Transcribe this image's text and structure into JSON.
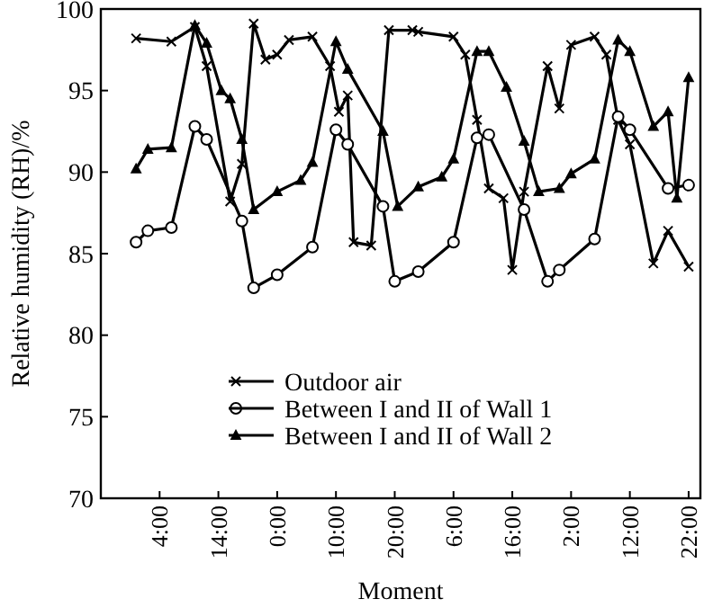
{
  "chart_data": {
    "type": "line",
    "xlabel": "Moment",
    "ylabel": "Relative humidity (RH)/%",
    "xlim": [
      "1999-12-31T18:00",
      "2000-01-05T00:00"
    ],
    "ylim": [
      70,
      100
    ],
    "xticks": [
      {
        "value": "2000-01-01T04:00",
        "label": "4:00"
      },
      {
        "value": "2000-01-01T14:00",
        "label": "14:00"
      },
      {
        "value": "2000-01-02T00:00",
        "label": "0:00"
      },
      {
        "value": "2000-01-02T10:00",
        "label": "10:00"
      },
      {
        "value": "2000-01-02T20:00",
        "label": "20:00"
      },
      {
        "value": "2000-01-03T06:00",
        "label": "6:00"
      },
      {
        "value": "2000-01-03T16:00",
        "label": "16:00"
      },
      {
        "value": "2000-01-04T02:00",
        "label": "2:00"
      },
      {
        "value": "2000-01-04T12:00",
        "label": "12:00"
      },
      {
        "value": "2000-01-04T22:00",
        "label": "22:00"
      }
    ],
    "yticks": [
      70,
      75,
      80,
      85,
      90,
      95,
      100
    ],
    "legend": "bottom",
    "line_style": "solid",
    "series": [
      {
        "name": "Outdoor air",
        "color": "#000000",
        "marker": "cross",
        "x": [
          "2000-01-01T00:00",
          "2000-01-01T06:00",
          "2000-01-01T10:00",
          "2000-01-01T12:00",
          "2000-01-01T16:00",
          "2000-01-01T18:00",
          "2000-01-01T20:00",
          "2000-01-01T22:00",
          "2000-01-02T00:00",
          "2000-01-02T02:00",
          "2000-01-02T06:00",
          "2000-01-02T09:00",
          "2000-01-02T10:30",
          "2000-01-02T12:00",
          "2000-01-02T13:00",
          "2000-01-02T16:00",
          "2000-01-02T19:00",
          "2000-01-02T23:00",
          "2000-01-03T00:00",
          "2000-01-03T06:00",
          "2000-01-03T08:00",
          "2000-01-03T10:00",
          "2000-01-03T12:00",
          "2000-01-03T14:30",
          "2000-01-03T16:00",
          "2000-01-03T18:00",
          "2000-01-03T22:00",
          "2000-01-04T00:00",
          "2000-01-04T02:00",
          "2000-01-04T06:00",
          "2000-01-04T08:00",
          "2000-01-04T10:00",
          "2000-01-04T12:00",
          "2000-01-04T16:00",
          "2000-01-04T18:30",
          "2000-01-04T22:00"
        ],
        "values": [
          98.2,
          98.0,
          98.9,
          96.5,
          88.2,
          90.5,
          99.1,
          96.9,
          97.2,
          98.1,
          98.3,
          96.5,
          93.7,
          94.7,
          85.7,
          85.5,
          98.7,
          98.7,
          98.6,
          98.3,
          97.2,
          93.2,
          89.0,
          88.4,
          84.0,
          88.8,
          96.5,
          93.9,
          97.8,
          98.3,
          97.2,
          93.2,
          91.7,
          84.4,
          86.4,
          84.2
        ]
      },
      {
        "name": "Between I and II of Wall 1",
        "color": "#000000",
        "marker": "circle",
        "x": [
          "2000-01-01T00:00",
          "2000-01-01T02:00",
          "2000-01-01T06:00",
          "2000-01-01T10:00",
          "2000-01-01T12:00",
          "2000-01-01T18:00",
          "2000-01-01T20:00",
          "2000-01-02T00:00",
          "2000-01-02T06:00",
          "2000-01-02T10:00",
          "2000-01-02T12:00",
          "2000-01-02T18:00",
          "2000-01-02T20:00",
          "2000-01-03T00:00",
          "2000-01-03T06:00",
          "2000-01-03T10:00",
          "2000-01-03T12:00",
          "2000-01-03T18:00",
          "2000-01-03T22:00",
          "2000-01-04T00:00",
          "2000-01-04T06:00",
          "2000-01-04T10:00",
          "2000-01-04T12:00",
          "2000-01-04T18:30",
          "2000-01-04T22:00"
        ],
        "values": [
          85.7,
          86.4,
          86.6,
          92.8,
          92.0,
          87.0,
          82.9,
          83.7,
          85.4,
          92.6,
          91.7,
          87.9,
          83.3,
          83.9,
          85.7,
          92.1,
          92.3,
          87.7,
          83.3,
          84.0,
          85.9,
          93.4,
          92.6,
          89.0,
          89.2
        ]
      },
      {
        "name": "Between I and II of Wall 2",
        "color": "#000000",
        "marker": "triangle",
        "x": [
          "2000-01-01T00:00",
          "2000-01-01T02:00",
          "2000-01-01T06:00",
          "2000-01-01T10:00",
          "2000-01-01T12:00",
          "2000-01-01T14:30",
          "2000-01-01T16:00",
          "2000-01-01T18:00",
          "2000-01-01T20:00",
          "2000-01-02T00:00",
          "2000-01-02T04:00",
          "2000-01-02T06:00",
          "2000-01-02T10:00",
          "2000-01-02T12:00",
          "2000-01-02T18:00",
          "2000-01-02T20:30",
          "2000-01-03T00:00",
          "2000-01-03T04:00",
          "2000-01-03T06:00",
          "2000-01-03T10:00",
          "2000-01-03T12:00",
          "2000-01-03T15:00",
          "2000-01-03T18:00",
          "2000-01-03T20:30",
          "2000-01-04T00:00",
          "2000-01-04T02:00",
          "2000-01-04T06:00",
          "2000-01-04T10:00",
          "2000-01-04T12:00",
          "2000-01-04T16:00",
          "2000-01-04T18:30",
          "2000-01-04T20:00",
          "2000-01-04T22:00"
        ],
        "values": [
          90.2,
          91.4,
          91.5,
          99.0,
          97.9,
          95.0,
          94.5,
          92.0,
          87.7,
          88.8,
          89.5,
          90.6,
          98.0,
          96.3,
          92.5,
          87.9,
          89.1,
          89.7,
          90.8,
          97.4,
          97.4,
          95.2,
          91.9,
          88.8,
          89.0,
          89.9,
          90.8,
          98.1,
          97.4,
          92.8,
          93.7,
          88.4,
          95.8
        ]
      }
    ]
  }
}
